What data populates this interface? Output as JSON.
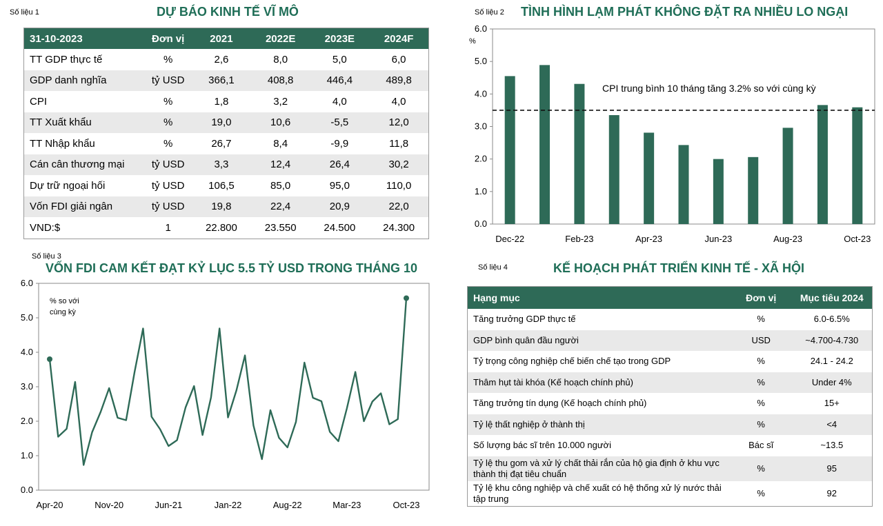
{
  "panel1": {
    "label": "Số liệu 1",
    "title": "DỰ BÁO KINH TẾ VĨ MÔ",
    "columns": [
      "31-10-2023",
      "Đơn vị",
      "2021",
      "2022E",
      "2023E",
      "2024F"
    ],
    "rows": [
      [
        "TT GDP thực tế",
        "%",
        "2,6",
        "8,0",
        "5,0",
        "6,0"
      ],
      [
        "GDP danh nghĩa",
        "tỷ USD",
        "366,1",
        "408,8",
        "446,4",
        "489,8"
      ],
      [
        "CPI",
        "%",
        "1,8",
        "3,2",
        "4,0",
        "4,0"
      ],
      [
        "TT Xuất khẩu",
        "%",
        "19,0",
        "10,6",
        "-5,5",
        "12,0"
      ],
      [
        "TT Nhập khẩu",
        "%",
        "26,7",
        "8,4",
        "-9,9",
        "11,8"
      ],
      [
        "Cán cân thương mại",
        "tỷ USD",
        "3,3",
        "12,4",
        "26,4",
        "30,2"
      ],
      [
        "Dự trữ ngoại hối",
        "tỷ USD",
        "106,5",
        "85,0",
        "95,0",
        "110,0"
      ],
      [
        "Vốn FDI giải ngân",
        "tỷ USD",
        "19,8",
        "22,4",
        "20,9",
        "22,0"
      ],
      [
        "VND:$",
        "1",
        "22.800",
        "23.550",
        "24.500",
        "24.300"
      ]
    ]
  },
  "panel2": {
    "label": "Số liệu 2",
    "title": "TÌNH HÌNH LẠM PHÁT KHÔNG ĐẶT RA NHIỀU LO NGẠI",
    "unit": "%",
    "annotation": "CPI trung bình 10 tháng tăng 3.2% so với cùng kỳ"
  },
  "panel3": {
    "label": "Số liệu 3",
    "title": "VỐN FDI CAM KẾT ĐẠT KỶ LỤC 5.5 TỶ USD TRONG THÁNG 10",
    "unit_line1": "% so với",
    "unit_line2": "cùng kỳ"
  },
  "panel4": {
    "label": "Số liệu 4",
    "title": "KẾ HOẠCH PHÁT TRIỂN KINH TẾ - XÃ HỘI",
    "columns": [
      "Hạng mục",
      "Đơn vị",
      "Mục tiêu 2024"
    ],
    "rows": [
      [
        "Tăng trưởng GDP thực tế",
        "%",
        "6.0-6.5%"
      ],
      [
        "GDP bình quân đầu người",
        "USD",
        "~4.700-4.730"
      ],
      [
        "Tỷ trọng công nghiệp chế biến chế tạo trong GDP",
        "%",
        "24.1 - 24.2"
      ],
      [
        "Thâm hụt tài khóa (Kế hoạch chính phủ)",
        "%",
        "Under 4%"
      ],
      [
        "Tăng trưởng tín dụng (Kế hoạch chính phủ)",
        "%",
        "15+"
      ],
      [
        "Tỷ lệ thất nghiệp ở thành thị",
        "%",
        "<4"
      ],
      [
        "Số lượng bác sĩ trên 10.000 người",
        "Bác sĩ",
        "~13.5"
      ],
      [
        "Tỷ lệ thu gom và xử lý chất thải rắn của hộ gia định ở khu vực thành thị đạt tiêu chuẩn",
        "%",
        "95"
      ],
      [
        "Tỷ lệ khu công nghiệp và chế xuất có hệ thống xử lý nước thải tập trung",
        "%",
        "92"
      ]
    ]
  },
  "colors": {
    "accent": "#2e6a57",
    "bar": "#2e6a57",
    "line": "#2e6a57",
    "title": "#1f6e57",
    "stripe": "#e9e9e9"
  },
  "chart_data": [
    {
      "type": "bar",
      "categories": [
        "Dec-22",
        "Jan-23",
        "Feb-23",
        "Mar-23",
        "Apr-23",
        "May-23",
        "Jun-23",
        "Jul-23",
        "Aug-23",
        "Sep-23",
        "Oct-23"
      ],
      "tick_labels": [
        "Dec-22",
        "Feb-23",
        "Apr-23",
        "Jun-23",
        "Aug-23",
        "Oct-23"
      ],
      "values": [
        4.55,
        4.89,
        4.31,
        3.35,
        2.81,
        2.43,
        2.0,
        2.06,
        2.96,
        3.66,
        3.59
      ],
      "reference_line": 3.5,
      "ylim": [
        0,
        6
      ],
      "yticks": [
        "0.0",
        "1.0",
        "2.0",
        "3.0",
        "4.0",
        "5.0",
        "6.0"
      ],
      "ylabel": "%",
      "grid": false
    },
    {
      "type": "line",
      "x": [
        "Apr-20",
        "May-20",
        "Jun-20",
        "Jul-20",
        "Aug-20",
        "Sep-20",
        "Oct-20",
        "Nov-20",
        "Dec-20",
        "Jan-21",
        "Feb-21",
        "Mar-21",
        "Apr-21",
        "May-21",
        "Jun-21",
        "Jul-21",
        "Aug-21",
        "Sep-21",
        "Oct-21",
        "Nov-21",
        "Dec-21",
        "Jan-22",
        "Feb-22",
        "Mar-22",
        "Apr-22",
        "May-22",
        "Jun-22",
        "Jul-22",
        "Aug-22",
        "Sep-22",
        "Oct-22",
        "Nov-22",
        "Dec-22",
        "Jan-23",
        "Feb-23",
        "Mar-23",
        "Apr-23",
        "May-23",
        "Jun-23",
        "Jul-23",
        "Aug-23",
        "Sep-23",
        "Oct-23"
      ],
      "tick_labels": [
        "Apr-20",
        "Nov-20",
        "Jun-21",
        "Jan-22",
        "Aug-22",
        "Mar-23",
        "Oct-23"
      ],
      "values": [
        3.8,
        1.55,
        1.78,
        3.14,
        0.73,
        1.68,
        2.27,
        2.96,
        2.1,
        2.03,
        3.43,
        4.69,
        2.13,
        1.77,
        1.28,
        1.45,
        2.4,
        3.02,
        1.6,
        2.69,
        4.69,
        2.11,
        2.9,
        3.91,
        1.88,
        0.9,
        2.32,
        1.52,
        1.24,
        1.98,
        3.7,
        2.68,
        2.58,
        1.69,
        1.42,
        2.37,
        3.43,
        2.0,
        2.57,
        2.81,
        1.91,
        2.06,
        5.57
      ],
      "ylim": [
        0,
        6
      ],
      "yticks": [
        "0.0",
        "1.0",
        "2.0",
        "3.0",
        "4.0",
        "5.0",
        "6.0"
      ],
      "ylabel": "% so với cùng kỳ",
      "grid": false
    }
  ]
}
